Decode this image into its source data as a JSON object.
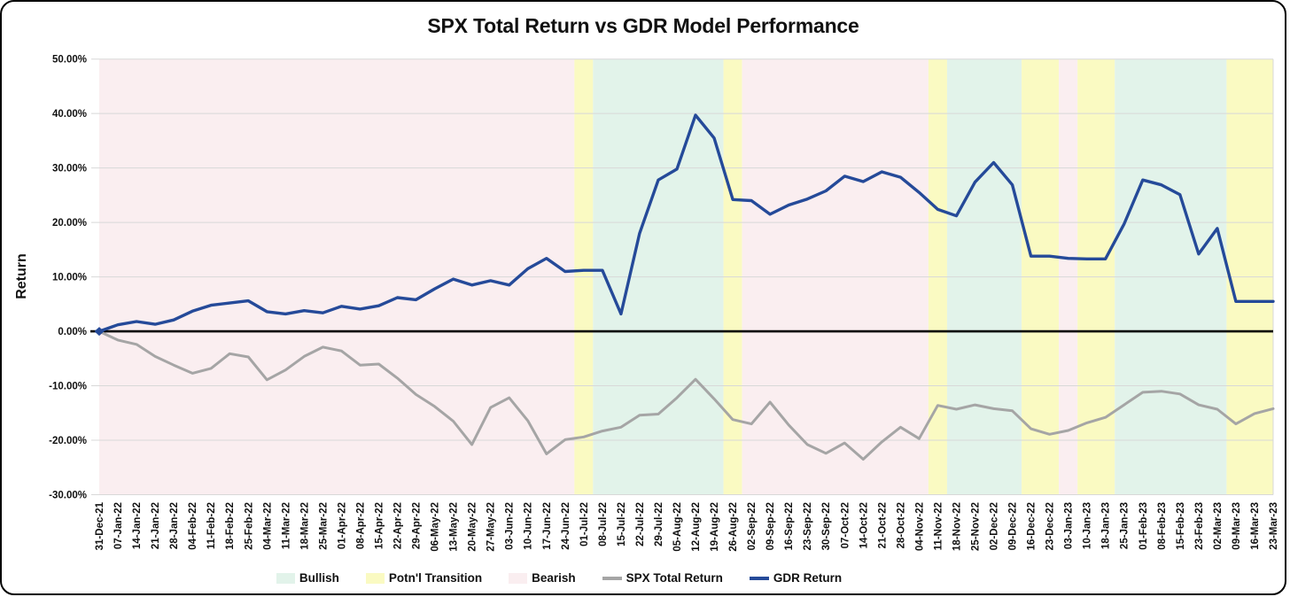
{
  "card": {
    "title": "SPX Total Return vs GDR Model Performance"
  },
  "y_axis": {
    "title": "Return",
    "tick_labels": [
      "50.00%",
      "40.00%",
      "30.00%",
      "20.00%",
      "10.00%",
      "0.00%",
      "-10.00%",
      "-20.00%",
      "-30.00%"
    ],
    "tick_values": [
      50,
      40,
      30,
      20,
      10,
      0,
      -10,
      -20,
      -30
    ]
  },
  "legend": {
    "items": [
      {
        "label": "Bullish",
        "type": "band",
        "color": "#e2f3ea"
      },
      {
        "label": "Potn'l Transition",
        "type": "band",
        "color": "#fafac2"
      },
      {
        "label": "Bearish",
        "type": "band",
        "color": "#faeef0"
      },
      {
        "label": "SPX Total Return",
        "type": "line",
        "color": "#a5a5a5"
      },
      {
        "label": "GDR Return",
        "type": "line",
        "color": "#254a99"
      }
    ]
  },
  "chart_data": {
    "type": "line",
    "title": "SPX Total Return vs GDR Model Performance",
    "xlabel": "",
    "ylabel": "Return",
    "ylim": [
      -30,
      50
    ],
    "grid": true,
    "zero_line_color": "#000000",
    "gridline_color": "#d8d8d8",
    "legend_position": "bottom",
    "x": [
      "31-Dec-21",
      "07-Jan-22",
      "14-Jan-22",
      "21-Jan-22",
      "28-Jan-22",
      "04-Feb-22",
      "11-Feb-22",
      "18-Feb-22",
      "25-Feb-22",
      "04-Mar-22",
      "11-Mar-22",
      "18-Mar-22",
      "25-Mar-22",
      "01-Apr-22",
      "08-Apr-22",
      "15-Apr-22",
      "22-Apr-22",
      "29-Apr-22",
      "06-May-22",
      "13-May-22",
      "20-May-22",
      "27-May-22",
      "03-Jun-22",
      "10-Jun-22",
      "17-Jun-22",
      "24-Jun-22",
      "01-Jul-22",
      "08-Jul-22",
      "15-Jul-22",
      "22-Jul-22",
      "29-Jul-22",
      "05-Aug-22",
      "12-Aug-22",
      "19-Aug-22",
      "26-Aug-22",
      "02-Sep-22",
      "09-Sep-22",
      "16-Sep-22",
      "23-Sep-22",
      "30-Sep-22",
      "07-Oct-22",
      "14-Oct-22",
      "21-Oct-22",
      "28-Oct-22",
      "04-Nov-22",
      "11-Nov-22",
      "18-Nov-22",
      "25-Nov-22",
      "02-Dec-22",
      "09-Dec-22",
      "16-Dec-22",
      "23-Dec-22",
      "03-Jan-23",
      "10-Jan-23",
      "18-Jan-23",
      "25-Jan-23",
      "01-Feb-23",
      "08-Feb-23",
      "15-Feb-23",
      "23-Feb-23",
      "02-Mar-23",
      "09-Mar-23",
      "16-Mar-23",
      "23-Mar-23"
    ],
    "series": [
      {
        "name": "SPX Total Return",
        "color": "#a5a5a5",
        "unit": "percent",
        "values": [
          0.0,
          -1.6,
          -2.4,
          -4.6,
          -6.2,
          -7.7,
          -6.8,
          -4.1,
          -4.7,
          -8.9,
          -7.1,
          -4.6,
          -2.9,
          -3.6,
          -6.2,
          -6.0,
          -8.6,
          -11.6,
          -13.8,
          -16.5,
          -20.8,
          -14.0,
          -12.2,
          -16.4,
          -22.5,
          -19.9,
          -19.4,
          -18.3,
          -17.6,
          -15.4,
          -15.2,
          -12.2,
          -8.8,
          -12.4,
          -16.2,
          -17.0,
          -13.0,
          -17.2,
          -20.8,
          -22.4,
          -20.5,
          -23.5,
          -20.3,
          -17.6,
          -19.7,
          -13.6,
          -14.3,
          -13.5,
          -14.2,
          -14.6,
          -17.9,
          -18.9,
          -18.2,
          -16.8,
          -15.8,
          -13.5,
          -11.2,
          -11.0,
          -11.5,
          -13.5,
          -14.3,
          -17.0,
          -15.1,
          -14.2
        ]
      },
      {
        "name": "GDR Return",
        "color": "#254a99",
        "unit": "percent",
        "values": [
          0.0,
          1.2,
          1.8,
          1.3,
          2.1,
          3.7,
          4.8,
          5.2,
          5.6,
          3.6,
          3.2,
          3.8,
          3.4,
          4.6,
          4.1,
          4.7,
          6.2,
          5.8,
          7.8,
          9.6,
          8.5,
          9.3,
          8.5,
          11.5,
          13.4,
          11.0,
          11.2,
          11.2,
          3.2,
          18.0,
          27.8,
          29.8,
          39.7,
          35.5,
          24.2,
          24.0,
          21.5,
          23.2,
          24.3,
          25.8,
          28.5,
          27.5,
          29.3,
          28.3,
          25.5,
          22.4,
          21.2,
          27.4,
          31.0,
          26.9,
          13.8,
          13.8,
          13.4,
          13.3,
          13.3,
          19.7,
          27.8,
          26.9,
          25.1,
          14.2,
          18.9,
          5.5,
          5.5,
          5.5
        ]
      }
    ],
    "bands": [
      {
        "label": "Bearish",
        "color": "#faeef0",
        "from": 0,
        "to": 25.5
      },
      {
        "label": "Potn'l Transition",
        "color": "#fafac2",
        "from": 25.5,
        "to": 26.5
      },
      {
        "label": "Bullish",
        "color": "#e2f3ea",
        "from": 26.5,
        "to": 33.5
      },
      {
        "label": "Potn'l Transition",
        "color": "#fafac2",
        "from": 33.5,
        "to": 34.5
      },
      {
        "label": "Bearish",
        "color": "#faeef0",
        "from": 34.5,
        "to": 44.5
      },
      {
        "label": "Potn'l Transition",
        "color": "#fafac2",
        "from": 44.5,
        "to": 45.5
      },
      {
        "label": "Bullish",
        "color": "#e2f3ea",
        "from": 45.5,
        "to": 49.5
      },
      {
        "label": "Potn'l Transition",
        "color": "#fafac2",
        "from": 49.5,
        "to": 51.5
      },
      {
        "label": "Bearish",
        "color": "#faeef0",
        "from": 51.5,
        "to": 52.5
      },
      {
        "label": "Potn'l Transition",
        "color": "#fafac2",
        "from": 52.5,
        "to": 54.5
      },
      {
        "label": "Bullish",
        "color": "#e2f3ea",
        "from": 54.5,
        "to": 60.5
      },
      {
        "label": "Potn'l Transition",
        "color": "#fafac2",
        "from": 60.5,
        "to": 63
      }
    ]
  }
}
